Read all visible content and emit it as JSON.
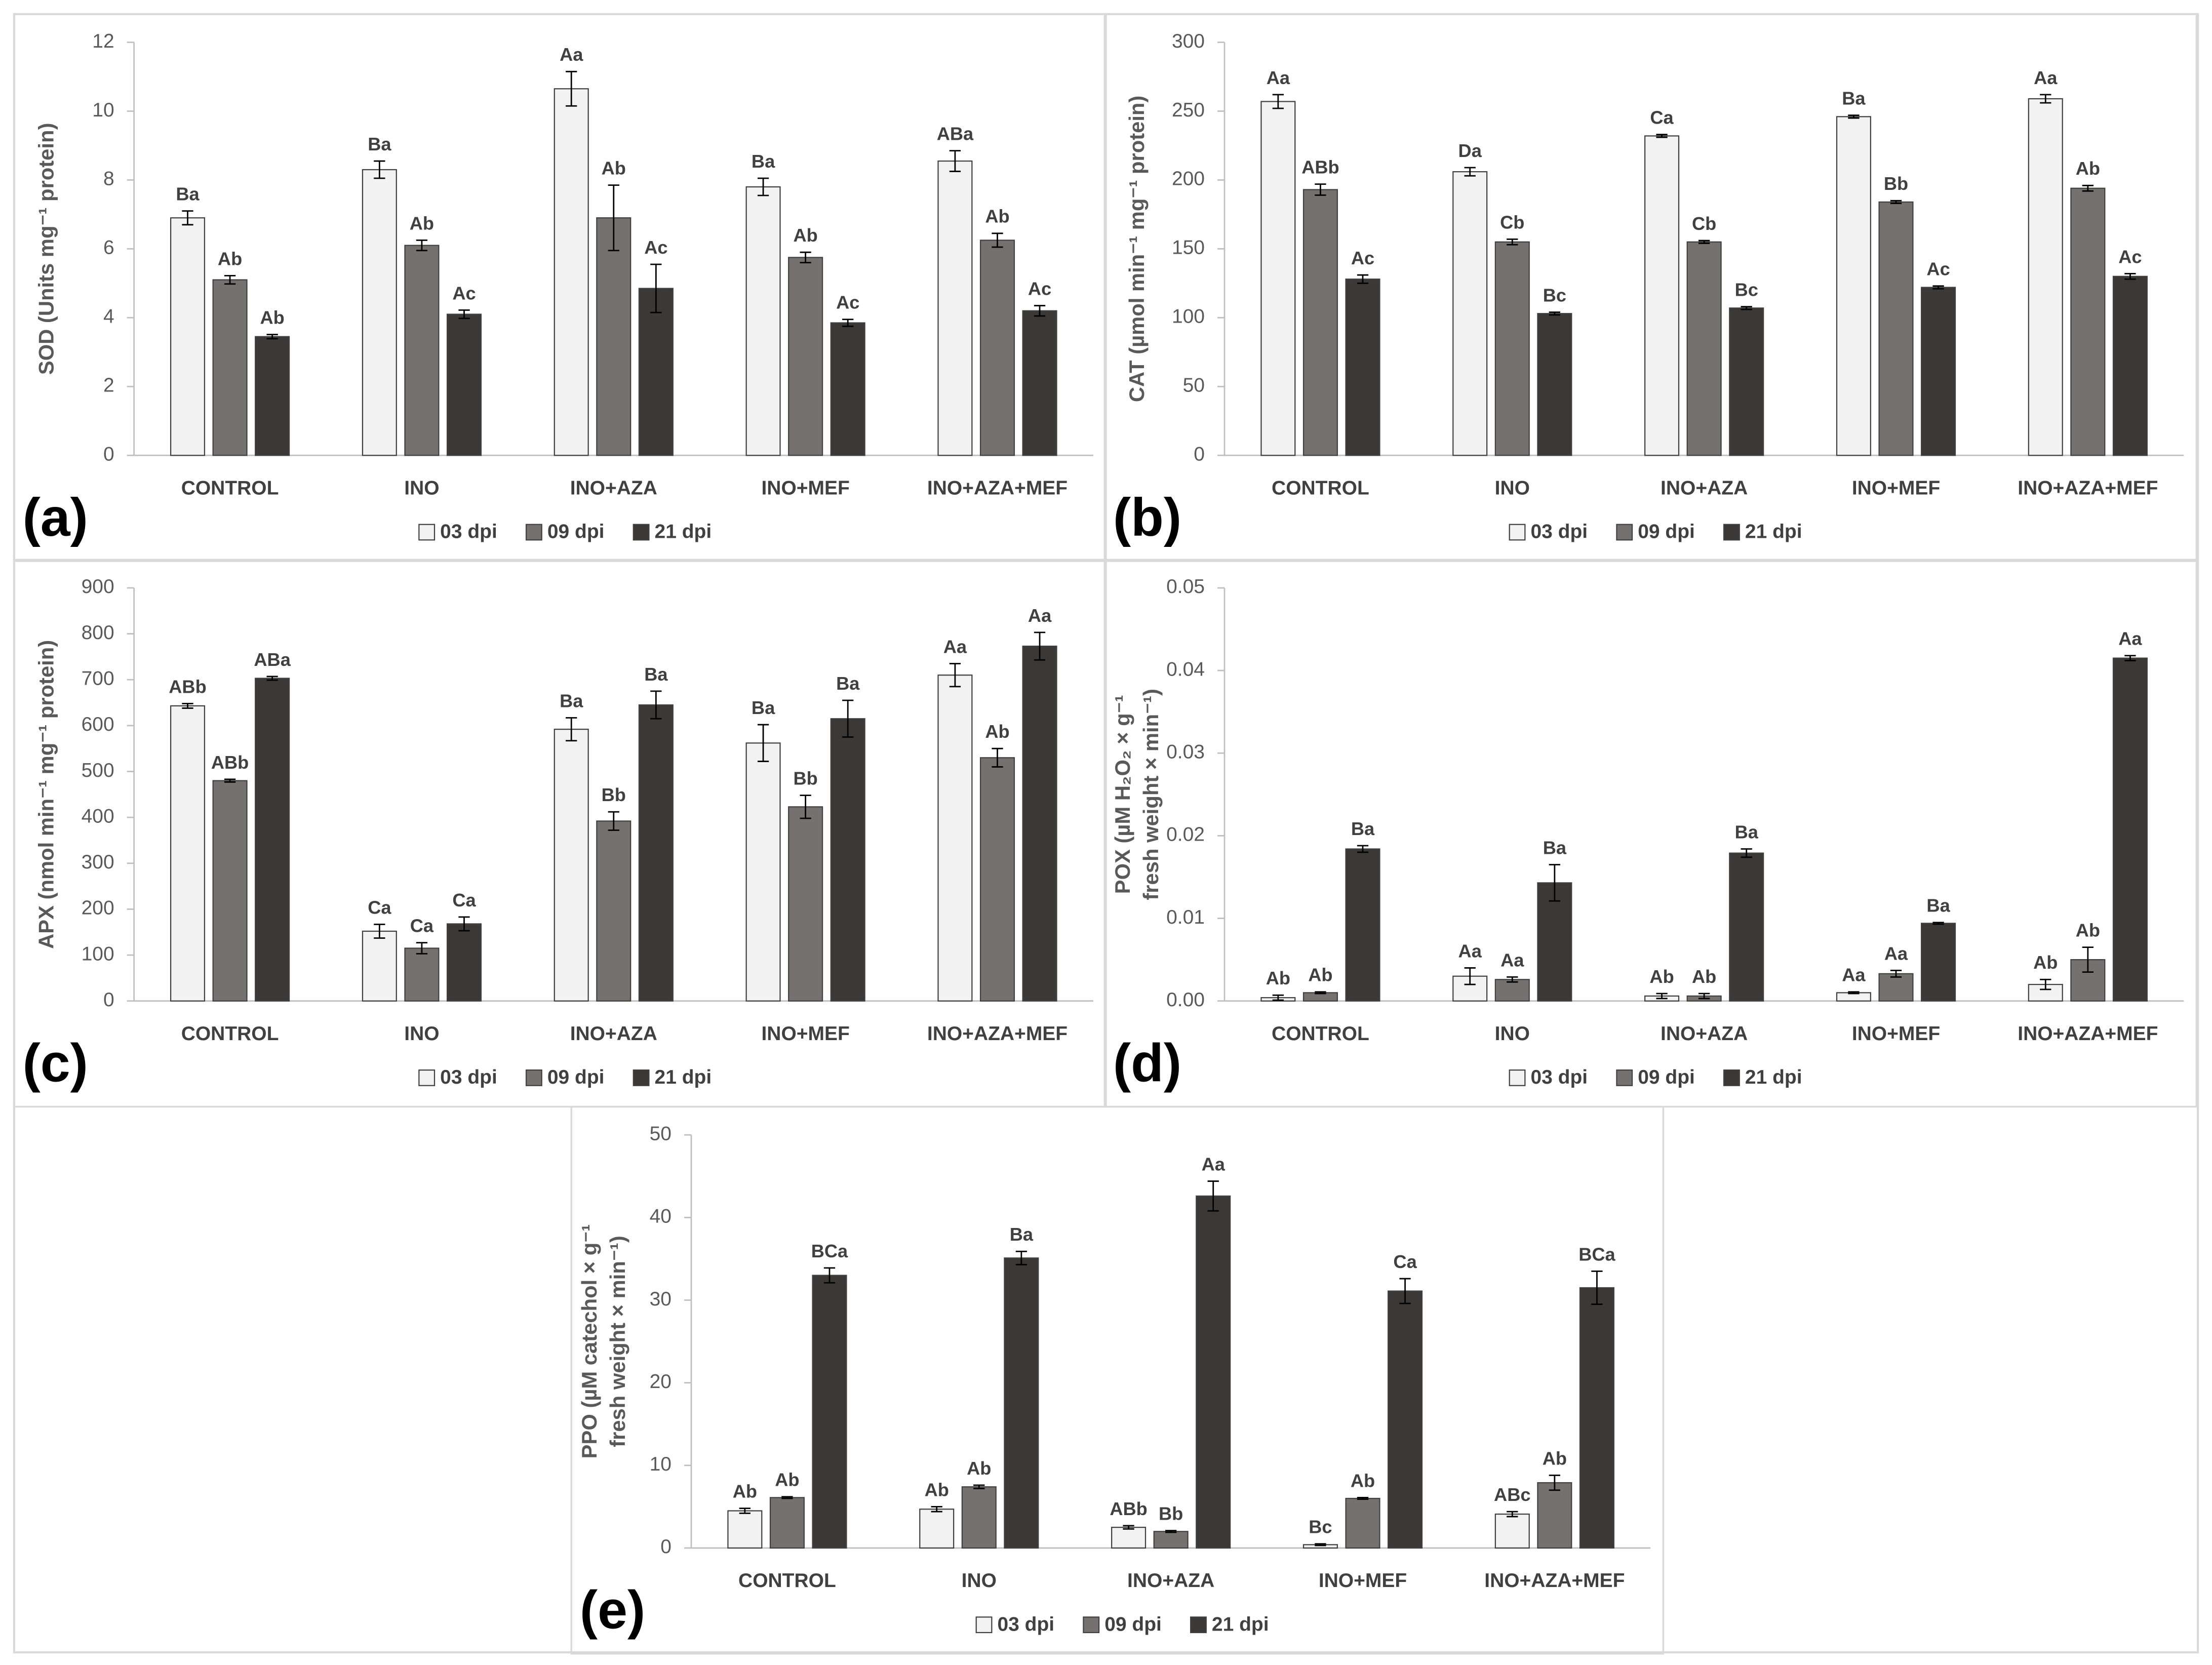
{
  "chart_data": [
    {
      "type": "bar",
      "panel": "(a)",
      "ylabel": [
        "SOD (Units mg⁻¹ protein)"
      ],
      "categories": [
        "CONTROL",
        "INO",
        "INO+AZA",
        "INO+MEF",
        "INO+AZA+MEF"
      ],
      "ylim": [
        0,
        12
      ],
      "yticks": [
        0,
        2,
        4,
        6,
        8,
        10,
        12
      ],
      "series": [
        {
          "name": "03 dpi",
          "color": "#f2f2f2",
          "values": [
            6.9,
            8.3,
            10.65,
            7.8,
            8.55
          ],
          "errors": [
            0.2,
            0.25,
            0.5,
            0.25,
            0.3
          ],
          "letters": [
            "Ba",
            "Ba",
            "Aa",
            "Ba",
            "ABa"
          ]
        },
        {
          "name": "09 dpi",
          "color": "#767171",
          "values": [
            5.1,
            6.1,
            6.9,
            5.75,
            6.25
          ],
          "errors": [
            0.12,
            0.15,
            0.95,
            0.15,
            0.2
          ],
          "letters": [
            "Ab",
            "Ab",
            "Ab",
            "Ab",
            "Ab"
          ]
        },
        {
          "name": "21 dpi",
          "color": "#3b3838",
          "values": [
            3.45,
            4.1,
            4.85,
            3.85,
            4.2
          ],
          "errors": [
            0.06,
            0.12,
            0.7,
            0.1,
            0.15
          ],
          "letters": [
            "Ab",
            "Ac",
            "Ac",
            "Ac",
            "Ac"
          ]
        }
      ]
    },
    {
      "type": "bar",
      "panel": "(b)",
      "ylabel": [
        "CAT (µmol min⁻¹ mg⁻¹ protein)"
      ],
      "categories": [
        "CONTROL",
        "INO",
        "INO+AZA",
        "INO+MEF",
        "INO+AZA+MEF"
      ],
      "ylim": [
        0,
        300
      ],
      "yticks": [
        0,
        50,
        100,
        150,
        200,
        250,
        300
      ],
      "series": [
        {
          "name": "03 dpi",
          "color": "#f2f2f2",
          "values": [
            257,
            206,
            232,
            246,
            259
          ],
          "errors": [
            5,
            3,
            1,
            1,
            3
          ],
          "letters": [
            "Aa",
            "Da",
            "Ca",
            "Ba",
            "Aa"
          ]
        },
        {
          "name": "09 dpi",
          "color": "#767171",
          "values": [
            193,
            155,
            155,
            184,
            194
          ],
          "errors": [
            4,
            2,
            1,
            1,
            2
          ],
          "letters": [
            "ABb",
            "Cb",
            "Cb",
            "Bb",
            "Ab"
          ]
        },
        {
          "name": "21 dpi",
          "color": "#3b3838",
          "values": [
            128,
            103,
            107,
            122,
            130
          ],
          "errors": [
            3,
            1,
            1,
            1,
            2
          ],
          "letters": [
            "Ac",
            "Bc",
            "Bc",
            "Ac",
            "Ac"
          ]
        }
      ]
    },
    {
      "type": "bar",
      "panel": "(c)",
      "ylabel": [
        "APX (nmol min⁻¹ mg⁻¹ protein)"
      ],
      "categories": [
        "CONTROL",
        "INO",
        "INO+AZA",
        "INO+MEF",
        "INO+AZA+MEF"
      ],
      "ylim": [
        0,
        900
      ],
      "yticks": [
        0,
        100,
        200,
        300,
        400,
        500,
        600,
        700,
        800,
        900
      ],
      "series": [
        {
          "name": "03 dpi",
          "color": "#f2f2f2",
          "values": [
            643,
            152,
            592,
            562,
            710
          ],
          "errors": [
            5,
            15,
            25,
            40,
            25
          ],
          "letters": [
            "ABb",
            "Ca",
            "Ba",
            "Ba",
            "Aa"
          ]
        },
        {
          "name": "09 dpi",
          "color": "#767171",
          "values": [
            480,
            115,
            392,
            423,
            530
          ],
          "errors": [
            3,
            12,
            20,
            25,
            20
          ],
          "letters": [
            "ABb",
            "Ca",
            "Bb",
            "Bb",
            "Ab"
          ]
        },
        {
          "name": "21 dpi",
          "color": "#3b3838",
          "values": [
            703,
            168,
            645,
            615,
            773
          ],
          "errors": [
            4,
            15,
            30,
            40,
            30
          ],
          "letters": [
            "ABa",
            "Ca",
            "Ba",
            "Ba",
            "Aa"
          ]
        }
      ]
    },
    {
      "type": "bar",
      "panel": "(d)",
      "ylabel": [
        "POX (µM H₂O₂ × g⁻¹",
        "fresh weight × min⁻¹)"
      ],
      "categories": [
        "CONTROL",
        "INO",
        "INO+AZA",
        "INO+MEF",
        "INO+AZA+MEF"
      ],
      "ylim": [
        0,
        0.05
      ],
      "yticks": [
        {
          "value": 0,
          "label": "0.00"
        },
        0.01,
        0.02,
        0.03,
        0.04,
        0.05
      ],
      "series": [
        {
          "name": "03 dpi",
          "color": "#f2f2f2",
          "values": [
            0.0004,
            0.003,
            0.0006,
            0.001,
            0.002
          ],
          "errors": [
            0.0003,
            0.001,
            0.0003,
            0.0001,
            0.0006
          ],
          "letters": [
            "Ab",
            "Aa",
            "Ab",
            "Aa",
            "Ab"
          ]
        },
        {
          "name": "09 dpi",
          "color": "#767171",
          "values": [
            0.001,
            0.0026,
            0.0006,
            0.0033,
            0.005
          ],
          "errors": [
            0.0001,
            0.0003,
            0.0003,
            0.0004,
            0.0015
          ],
          "letters": [
            "Ab",
            "Aa",
            "Ab",
            "Aa",
            "Ab"
          ]
        },
        {
          "name": "21 dpi",
          "color": "#3b3838",
          "values": [
            0.0184,
            0.0143,
            0.0179,
            0.0094,
            0.0415
          ],
          "errors": [
            0.0004,
            0.0022,
            0.0005,
            0.0001,
            0.0003
          ],
          "letters": [
            "Ba",
            "Ba",
            "Ba",
            "Ba",
            "Aa"
          ]
        }
      ]
    },
    {
      "type": "bar",
      "panel": "(e)",
      "ylabel": [
        "PPO (µM catechol × g⁻¹",
        "fresh weight × min⁻¹)"
      ],
      "categories": [
        "CONTROL",
        "INO",
        "INO+AZA",
        "INO+MEF",
        "INO+AZA+MEF"
      ],
      "ylim": [
        0,
        50
      ],
      "yticks": [
        0,
        10,
        20,
        30,
        40,
        50
      ],
      "series": [
        {
          "name": "03 dpi",
          "color": "#f2f2f2",
          "values": [
            4.5,
            4.7,
            2.5,
            0.4,
            4.1
          ],
          "errors": [
            0.3,
            0.3,
            0.2,
            0.1,
            0.3
          ],
          "letters": [
            "Ab",
            "Ab",
            "ABb",
            "Bc",
            "ABc"
          ]
        },
        {
          "name": "09 dpi",
          "color": "#767171",
          "values": [
            6.1,
            7.4,
            2.0,
            6.0,
            7.9
          ],
          "errors": [
            0.1,
            0.2,
            0.1,
            0.1,
            0.9
          ],
          "letters": [
            "Ab",
            "Ab",
            "Bb",
            "Ab",
            "Ab"
          ]
        },
        {
          "name": "21 dpi",
          "color": "#3b3838",
          "values": [
            33,
            35.1,
            42.6,
            31.1,
            31.5
          ],
          "errors": [
            0.9,
            0.8,
            1.8,
            1.5,
            2
          ],
          "letters": [
            "BCa",
            "Ba",
            "Aa",
            "Ca",
            "BCa"
          ]
        }
      ]
    }
  ]
}
